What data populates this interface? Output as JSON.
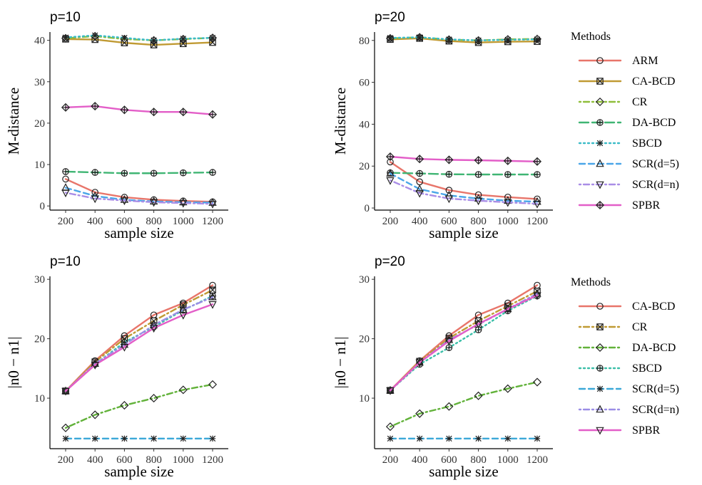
{
  "chart_data": [
    {
      "type": "line",
      "title": "p=10",
      "xlabel": "sample size",
      "ylabel": "M-distance",
      "x": [
        200,
        400,
        600,
        800,
        1000,
        1200
      ],
      "ylim": [
        -1,
        42
      ],
      "yticks": [
        0,
        10,
        20,
        30,
        40
      ],
      "series": [
        {
          "name": "ARM",
          "values": [
            6.5,
            3.3,
            2.1,
            1.5,
            1.2,
            1.0
          ]
        },
        {
          "name": "CA-BCD",
          "values": [
            40.3,
            40.2,
            39.4,
            38.9,
            39.2,
            39.5
          ]
        },
        {
          "name": "CR",
          "values": [
            40.5,
            41.0,
            40.3,
            40.0,
            40.3,
            40.6
          ]
        },
        {
          "name": "DA-BCD",
          "values": [
            8.3,
            8.1,
            7.9,
            7.9,
            8.0,
            8.1
          ]
        },
        {
          "name": "SBCD",
          "values": [
            40.7,
            41.2,
            40.6,
            40.0,
            40.4,
            40.6
          ]
        },
        {
          "name": "SCR(d=5)",
          "values": [
            4.4,
            2.4,
            1.5,
            1.1,
            0.9,
            0.8
          ]
        },
        {
          "name": "SCR(d=n)",
          "values": [
            3.2,
            1.8,
            1.3,
            0.9,
            0.7,
            0.5
          ]
        },
        {
          "name": "SPBR",
          "values": [
            23.8,
            24.1,
            23.2,
            22.7,
            22.7,
            22.1
          ]
        }
      ]
    },
    {
      "type": "line",
      "title": "p=20",
      "xlabel": "sample size",
      "ylabel": "M-distance",
      "x": [
        200,
        400,
        600,
        800,
        1000,
        1200
      ],
      "ylim": [
        -1,
        84
      ],
      "yticks": [
        0,
        20,
        40,
        60,
        80
      ],
      "series": [
        {
          "name": "ARM",
          "values": [
            22.0,
            12.5,
            8.5,
            6.3,
            5.2,
            4.3
          ]
        },
        {
          "name": "CA-BCD",
          "values": [
            80.5,
            81.0,
            79.7,
            79.0,
            79.4,
            79.5
          ]
        },
        {
          "name": "CR",
          "values": [
            81.0,
            81.5,
            80.4,
            80.0,
            80.5,
            80.7
          ]
        },
        {
          "name": "DA-BCD",
          "values": [
            16.8,
            16.5,
            16.1,
            16.0,
            16.0,
            16.0
          ]
        },
        {
          "name": "SBCD",
          "values": [
            81.2,
            81.5,
            80.5,
            80.0,
            80.3,
            80.5
          ]
        },
        {
          "name": "SCR(d=5)",
          "values": [
            16.5,
            9.0,
            6.0,
            4.5,
            3.5,
            3.0
          ]
        },
        {
          "name": "SCR(d=n)",
          "values": [
            13.2,
            7.1,
            4.5,
            3.5,
            2.7,
            2.0
          ]
        },
        {
          "name": "SPBR",
          "values": [
            24.5,
            23.4,
            23.0,
            22.8,
            22.5,
            22.2
          ]
        }
      ]
    },
    {
      "type": "line",
      "title": "p=10",
      "xlabel": "sample size",
      "ylabel": "|n0 − n1|",
      "x": [
        200,
        400,
        600,
        800,
        1000,
        1200
      ],
      "ylim": [
        1.5,
        30.5
      ],
      "yticks": [
        10,
        20,
        30
      ],
      "series": [
        {
          "name": "CA-BCD",
          "values": [
            11.2,
            16.3,
            20.5,
            24.0,
            26.0,
            29.0
          ]
        },
        {
          "name": "CR",
          "values": [
            11.2,
            16.1,
            20.0,
            23.0,
            25.7,
            28.2
          ]
        },
        {
          "name": "DA-BCD",
          "values": [
            5.0,
            7.2,
            8.8,
            10.0,
            11.4,
            12.3
          ]
        },
        {
          "name": "SBCD",
          "values": [
            11.2,
            15.7,
            19.4,
            22.0,
            24.8,
            27.2
          ]
        },
        {
          "name": "SCR(d=5)",
          "values": [
            3.2,
            3.2,
            3.2,
            3.2,
            3.2,
            3.2
          ]
        },
        {
          "name": "SCR(d=n)",
          "values": [
            11.2,
            15.8,
            19.0,
            22.3,
            24.9,
            27.0
          ]
        },
        {
          "name": "SPBR",
          "values": [
            11.2,
            15.6,
            18.6,
            21.8,
            24.0,
            25.8
          ]
        }
      ]
    },
    {
      "type": "line",
      "title": "p=20",
      "xlabel": "sample size",
      "ylabel": "|n0 − n1|",
      "x": [
        200,
        400,
        600,
        800,
        1000,
        1200
      ],
      "ylim": [
        1.5,
        30.5
      ],
      "yticks": [
        10,
        20,
        30
      ],
      "series": [
        {
          "name": "CA-BCD",
          "values": [
            11.3,
            16.3,
            20.5,
            24.0,
            26.0,
            29.0
          ]
        },
        {
          "name": "CR",
          "values": [
            11.3,
            16.2,
            20.1,
            23.0,
            25.5,
            28.0
          ]
        },
        {
          "name": "DA-BCD",
          "values": [
            5.2,
            7.4,
            8.6,
            10.4,
            11.6,
            12.7
          ]
        },
        {
          "name": "SBCD",
          "values": [
            11.3,
            15.7,
            18.5,
            21.5,
            24.7,
            27.2
          ]
        },
        {
          "name": "SCR(d=5)",
          "values": [
            3.2,
            3.2,
            3.2,
            3.2,
            3.2,
            3.2
          ]
        },
        {
          "name": "SCR(d=n)",
          "values": [
            11.3,
            16.0,
            19.8,
            22.4,
            25.0,
            27.6
          ]
        },
        {
          "name": "SPBR",
          "values": [
            11.3,
            16.0,
            19.6,
            22.5,
            25.0,
            27.3
          ]
        }
      ]
    }
  ],
  "legends": [
    {
      "title": "Methods",
      "items": [
        {
          "label": "ARM",
          "color": "#e8756a",
          "dash": "solid",
          "marker": "circle"
        },
        {
          "label": "CA-BCD",
          "color": "#c09a33",
          "dash": "solid",
          "marker": "square-x"
        },
        {
          "label": "CR",
          "color": "#8fbe3a",
          "dash": "dotdash",
          "marker": "diamond"
        },
        {
          "label": "DA-BCD",
          "color": "#3fb573",
          "dash": "longdash",
          "marker": "circle-plus"
        },
        {
          "label": "SBCD",
          "color": "#3bbcc8",
          "dash": "dotted",
          "marker": "asterisk"
        },
        {
          "label": "SCR(d=5)",
          "color": "#4aa6e8",
          "dash": "dashed",
          "marker": "triangle-up"
        },
        {
          "label": "SCR(d=n)",
          "color": "#a98de6",
          "dash": "dotdash",
          "marker": "triangle-down"
        },
        {
          "label": "SPBR",
          "color": "#e35ec8",
          "dash": "solid",
          "marker": "diamond-plus"
        }
      ]
    },
    {
      "title": "Methods",
      "items": [
        {
          "label": "CA-BCD",
          "color": "#e8756a",
          "dash": "solid",
          "marker": "circle"
        },
        {
          "label": "CR",
          "color": "#c09a33",
          "dash": "dotdash",
          "marker": "square-x"
        },
        {
          "label": "DA-BCD",
          "color": "#62b23a",
          "dash": "dotdash",
          "marker": "diamond"
        },
        {
          "label": "SBCD",
          "color": "#3bbfa8",
          "dash": "dotted",
          "marker": "circle-plus"
        },
        {
          "label": "SCR(d=5)",
          "color": "#3ba8d8",
          "dash": "dashed",
          "marker": "asterisk"
        },
        {
          "label": "SCR(d=n)",
          "color": "#9b8ee6",
          "dash": "dotdash",
          "marker": "triangle-up"
        },
        {
          "label": "SPBR",
          "color": "#e35ec8",
          "dash": "solid",
          "marker": "triangle-down"
        }
      ]
    }
  ]
}
